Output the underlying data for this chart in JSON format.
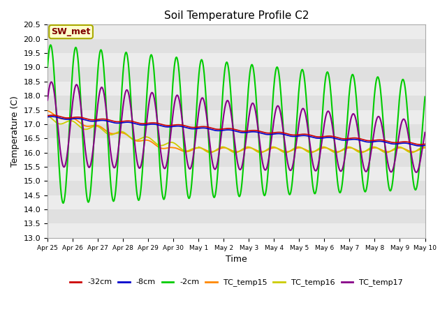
{
  "title": "Soil Temperature Profile C2",
  "xlabel": "Time",
  "ylabel": "Temperature (C)",
  "ylim": [
    13.0,
    20.5
  ],
  "yticks": [
    13.0,
    13.5,
    14.0,
    14.5,
    15.0,
    15.5,
    16.0,
    16.5,
    17.0,
    17.5,
    18.0,
    18.5,
    19.0,
    19.5,
    20.0,
    20.5
  ],
  "background_color": "#ffffff",
  "plot_bg_color": "#e0e0e0",
  "stripe_color": "#ececec",
  "annotation_text": "SW_met",
  "annotation_bg": "#ffffcc",
  "annotation_fg": "#800000",
  "annotation_edge": "#aaaa00",
  "colors": {
    "neg32cm": "#cc0000",
    "neg8cm": "#0000cc",
    "neg2cm": "#00cc00",
    "TC_temp15": "#ff8800",
    "TC_temp16": "#cccc00",
    "TC_temp17": "#880088"
  },
  "legend_labels": [
    "-32cm",
    "-8cm",
    "-2cm",
    "TC_temp15",
    "TC_temp16",
    "TC_temp17"
  ],
  "x_tick_labels": [
    "Apr 25",
    "Apr 26",
    "Apr 27",
    "Apr 28",
    "Apr 29",
    "Apr 30",
    "May 1",
    "May 2",
    "May 3",
    "May 4",
    "May 5",
    "May 6",
    "May 7",
    "May 8",
    "May 9",
    "May 10"
  ],
  "n_points": 721
}
